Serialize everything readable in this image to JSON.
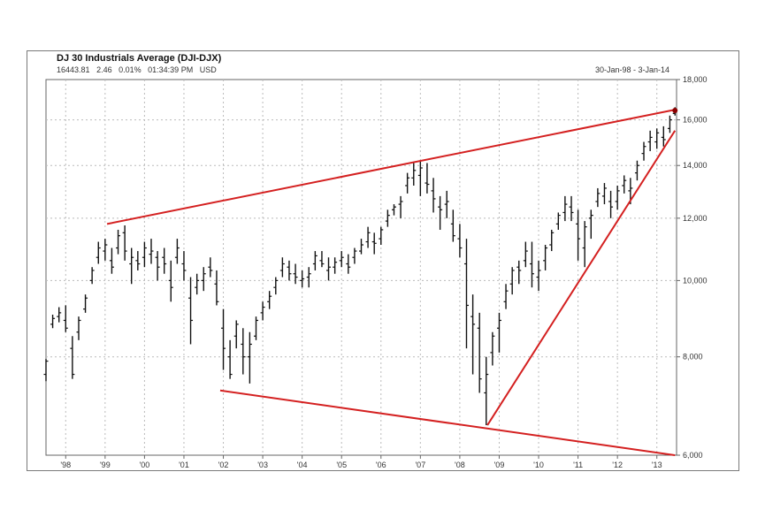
{
  "chart_data": {
    "type": "bar",
    "subtype": "ohlc",
    "title": "DJ 30 Industrials Average (DJI-DJX)",
    "quote": {
      "last": "16443.81",
      "change": "2.46",
      "change_pct": "0.01%",
      "time": "01:34:39 PM",
      "currency": "USD"
    },
    "date_range": "30-Jan-98 - 3-Jan-14",
    "x_tick_labels": [
      "'98",
      "'99",
      "'00",
      "'01",
      "'02",
      "'03",
      "'04",
      "'05",
      "'06",
      "'07",
      "'08",
      "'09",
      "'10",
      "'11",
      "'12",
      "'13"
    ],
    "y_tick_labels": [
      "6,000",
      "8,000",
      "10,000",
      "12,000",
      "14,000",
      "16,000",
      "18,000"
    ],
    "y_ticks": [
      6000,
      8000,
      10000,
      12000,
      14000,
      16000,
      18000
    ],
    "ylim": [
      6000,
      18000
    ],
    "y_scale": "log",
    "xlim": [
      1998.0,
      2014.0
    ],
    "grid": true,
    "series": [
      {
        "values": [
          [
            1998.0,
            7600,
            7950,
            7450,
            7900
          ],
          [
            1998.17,
            8800,
            9050,
            8700,
            8950
          ],
          [
            1998.33,
            9000,
            9250,
            8850,
            9100
          ],
          [
            1998.5,
            8900,
            9300,
            8600,
            8700
          ],
          [
            1998.67,
            8200,
            8500,
            7500,
            7600
          ],
          [
            1998.83,
            8600,
            9000,
            8400,
            8900
          ],
          [
            1999.0,
            9200,
            9600,
            9100,
            9500
          ],
          [
            1999.17,
            10000,
            10400,
            9900,
            10300
          ],
          [
            1999.33,
            10700,
            11200,
            10500,
            11000
          ],
          [
            1999.5,
            10900,
            11300,
            10600,
            11100
          ],
          [
            1999.67,
            10600,
            11000,
            10200,
            10400
          ],
          [
            1999.83,
            11000,
            11600,
            10800,
            11400
          ],
          [
            2000.0,
            11500,
            11750,
            10600,
            10900
          ],
          [
            2000.17,
            10500,
            11000,
            9900,
            10700
          ],
          [
            2000.33,
            10600,
            10900,
            10300,
            10500
          ],
          [
            2000.5,
            10700,
            11200,
            10400,
            11000
          ],
          [
            2000.67,
            10800,
            11300,
            10500,
            10900
          ],
          [
            2000.83,
            10700,
            10900,
            10000,
            10400
          ],
          [
            2001.0,
            10700,
            11000,
            10200,
            10500
          ],
          [
            2001.17,
            10000,
            10600,
            9400,
            9800
          ],
          [
            2001.33,
            10700,
            11300,
            10500,
            11000
          ],
          [
            2001.5,
            10500,
            10900,
            10000,
            10300
          ],
          [
            2001.67,
            9500,
            10100,
            8300,
            8900
          ],
          [
            2001.83,
            9800,
            10200,
            9600,
            10000
          ],
          [
            2002.0,
            10000,
            10400,
            9700,
            10200
          ],
          [
            2002.17,
            10400,
            10700,
            10100,
            10300
          ],
          [
            2002.33,
            9900,
            10300,
            9300,
            9400
          ],
          [
            2002.5,
            8700,
            9200,
            7700,
            8200
          ],
          [
            2002.67,
            8000,
            8400,
            7500,
            7600
          ],
          [
            2002.83,
            8500,
            8900,
            8200,
            8800
          ],
          [
            2003.0,
            8300,
            8700,
            7600,
            8000
          ],
          [
            2003.17,
            8000,
            8600,
            7400,
            8300
          ],
          [
            2003.33,
            8500,
            9000,
            8400,
            8900
          ],
          [
            2003.5,
            9100,
            9400,
            8900,
            9250
          ],
          [
            2003.67,
            9400,
            9700,
            9200,
            9550
          ],
          [
            2003.83,
            9800,
            10100,
            9600,
            10000
          ],
          [
            2004.0,
            10300,
            10700,
            10100,
            10500
          ],
          [
            2004.17,
            10400,
            10600,
            10000,
            10200
          ],
          [
            2004.33,
            10200,
            10500,
            9900,
            10100
          ],
          [
            2004.5,
            10000,
            10300,
            9800,
            10050
          ],
          [
            2004.67,
            10100,
            10400,
            9800,
            10200
          ],
          [
            2004.83,
            10500,
            10900,
            10300,
            10750
          ],
          [
            2005.0,
            10600,
            10900,
            10400,
            10500
          ],
          [
            2005.17,
            10300,
            10700,
            10000,
            10400
          ],
          [
            2005.33,
            10400,
            10700,
            10200,
            10550
          ],
          [
            2005.5,
            10600,
            10900,
            10400,
            10700
          ],
          [
            2005.67,
            10500,
            10800,
            10200,
            10400
          ],
          [
            2005.83,
            10700,
            11000,
            10500,
            10900
          ],
          [
            2006.0,
            10900,
            11300,
            10800,
            11100
          ],
          [
            2006.17,
            11200,
            11700,
            11000,
            11500
          ],
          [
            2006.33,
            11200,
            11500,
            10800,
            11150
          ],
          [
            2006.5,
            11300,
            11700,
            11100,
            11600
          ],
          [
            2006.67,
            11900,
            12300,
            11700,
            12100
          ],
          [
            2006.83,
            12300,
            12500,
            12100,
            12400
          ],
          [
            2007.0,
            12500,
            12800,
            12000,
            12600
          ],
          [
            2007.17,
            13200,
            13700,
            12900,
            13500
          ],
          [
            2007.33,
            13500,
            14100,
            13200,
            13800
          ],
          [
            2007.5,
            13600,
            14200,
            12800,
            13900
          ],
          [
            2007.67,
            13300,
            14100,
            12900,
            13250
          ],
          [
            2007.83,
            13000,
            13500,
            12200,
            12700
          ],
          [
            2008.0,
            12400,
            12800,
            11600,
            12300
          ],
          [
            2008.17,
            12500,
            13000,
            12000,
            12600
          ],
          [
            2008.33,
            11800,
            12300,
            11200,
            11400
          ],
          [
            2008.5,
            11300,
            11800,
            10700,
            11000
          ],
          [
            2008.67,
            10500,
            11300,
            8200,
            9300
          ],
          [
            2008.83,
            9000,
            9600,
            7600,
            8800
          ],
          [
            2009.0,
            8700,
            9100,
            7200,
            7500
          ],
          [
            2009.17,
            7200,
            8000,
            6550,
            7600
          ],
          [
            2009.33,
            8100,
            8600,
            7800,
            8500
          ],
          [
            2009.5,
            8700,
            9100,
            8100,
            8900
          ],
          [
            2009.67,
            9400,
            9900,
            9200,
            9700
          ],
          [
            2009.83,
            9900,
            10400,
            9600,
            10300
          ],
          [
            2010.0,
            10400,
            10600,
            9900,
            10300
          ],
          [
            2010.17,
            10600,
            11200,
            10400,
            10900
          ],
          [
            2010.33,
            10500,
            11200,
            9800,
            10200
          ],
          [
            2010.5,
            10100,
            10600,
            9700,
            10300
          ],
          [
            2010.67,
            10600,
            11100,
            10300,
            11000
          ],
          [
            2010.83,
            11100,
            11600,
            10900,
            11500
          ],
          [
            2011.0,
            11800,
            12200,
            11600,
            12100
          ],
          [
            2011.17,
            12200,
            12800,
            11900,
            12500
          ],
          [
            2011.33,
            12400,
            12800,
            11900,
            12200
          ],
          [
            2011.5,
            11800,
            12300,
            10600,
            11300
          ],
          [
            2011.67,
            11000,
            11900,
            10400,
            11700
          ],
          [
            2011.83,
            12000,
            12300,
            11300,
            12100
          ],
          [
            2012.0,
            12600,
            13100,
            12400,
            12900
          ],
          [
            2012.17,
            12800,
            13300,
            12500,
            13100
          ],
          [
            2012.33,
            12600,
            13000,
            12000,
            12400
          ],
          [
            2012.5,
            12600,
            13200,
            12300,
            13000
          ],
          [
            2012.67,
            13200,
            13600,
            12900,
            13400
          ],
          [
            2012.83,
            13000,
            13500,
            12500,
            13100
          ],
          [
            2013.0,
            13700,
            14200,
            13400,
            14000
          ],
          [
            2013.17,
            14500,
            15000,
            14200,
            14800
          ],
          [
            2013.33,
            15000,
            15500,
            14600,
            15200
          ],
          [
            2013.5,
            15000,
            15600,
            14700,
            15400
          ],
          [
            2013.67,
            15200,
            15700,
            14800,
            15100
          ],
          [
            2013.83,
            15600,
            16200,
            15400,
            16000
          ],
          [
            2013.96,
            16300,
            16600,
            16200,
            16444
          ]
        ]
      }
    ],
    "trendlines": [
      {
        "color": "#d42020",
        "from": [
          1999.55,
          11800
        ],
        "to": [
          2013.96,
          16480
        ]
      },
      {
        "color": "#d42020",
        "from": [
          2002.42,
          7250
        ],
        "to": [
          2013.96,
          6000
        ]
      },
      {
        "color": "#d42020",
        "from": [
          2009.2,
          6550
        ],
        "to": [
          2013.96,
          15500
        ]
      }
    ],
    "last_marker": {
      "color": "#8b0000",
      "x": 2013.96,
      "y": 16444
    },
    "bar_color": "#111111"
  }
}
